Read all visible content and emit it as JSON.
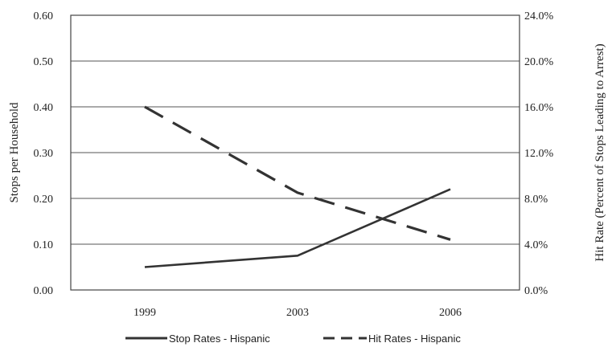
{
  "chart_data": {
    "type": "line",
    "categories": [
      "1999",
      "2003",
      "2006"
    ],
    "left_axis": {
      "label": "Stops per Household",
      "ylim": [
        0,
        0.6
      ],
      "ticks": [
        "0.00",
        "0.10",
        "0.20",
        "0.30",
        "0.40",
        "0.50",
        "0.60"
      ]
    },
    "right_axis": {
      "label": "Hit Rate (Percent of Stops Leading to Arrest)",
      "ylim": [
        0,
        24
      ],
      "ticks": [
        "0.0%",
        "4.0%",
        "8.0%",
        "12.0%",
        "16.0%",
        "20.0%",
        "24.0%"
      ]
    },
    "grid": true,
    "legend_position": "bottom",
    "series": [
      {
        "name": "Stop Rates - Hispanic",
        "axis": "left",
        "style": "solid",
        "color": "#333333",
        "values": [
          0.05,
          0.075,
          0.22
        ]
      },
      {
        "name": "Hit Rates - Hispanic",
        "axis": "right",
        "style": "dashed",
        "color": "#333333",
        "values": [
          16.0,
          8.5,
          4.4
        ]
      }
    ]
  }
}
